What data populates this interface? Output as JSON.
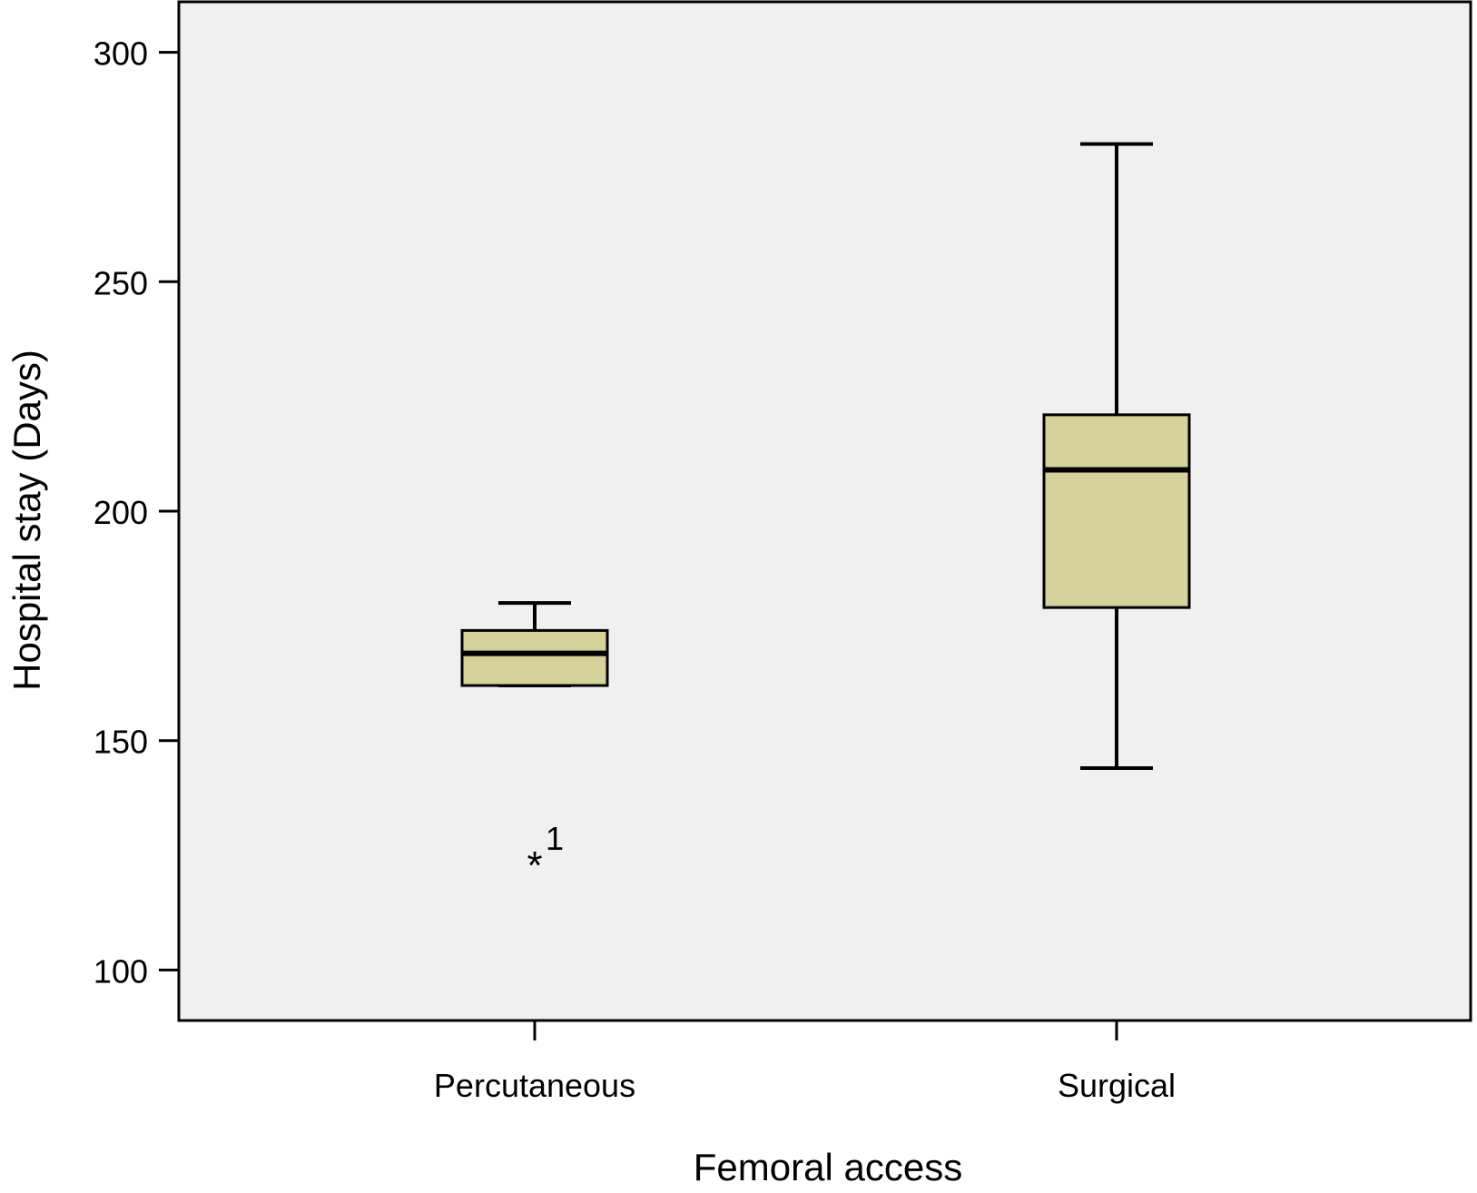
{
  "chart_data": {
    "type": "box",
    "title": "",
    "xlabel": "Femoral access",
    "ylabel": "Hospital stay (Days)",
    "ylim": [
      89,
      311
    ],
    "yticks": [
      100,
      150,
      200,
      250,
      300
    ],
    "ytick_labels": [
      "100",
      "150",
      "200",
      "250",
      "300"
    ],
    "categories": [
      "Percutaneous",
      "Surgical"
    ],
    "boxes": [
      {
        "category": "Percutaneous",
        "whisker_low": 162,
        "q1": 162,
        "median": 169,
        "q3": 174,
        "whisker_high": 180,
        "outliers": [
          {
            "value": 125,
            "marker": "*",
            "label": "1"
          }
        ]
      },
      {
        "category": "Surgical",
        "whisker_low": 144,
        "q1": 179,
        "median": 209,
        "q3": 221,
        "whisker_high": 280,
        "outliers": []
      }
    ],
    "grid": false,
    "legend": "none",
    "colors": {
      "plot_background": "#f0f0f0",
      "box_fill": "#d6d29b",
      "line": "#000000"
    }
  }
}
